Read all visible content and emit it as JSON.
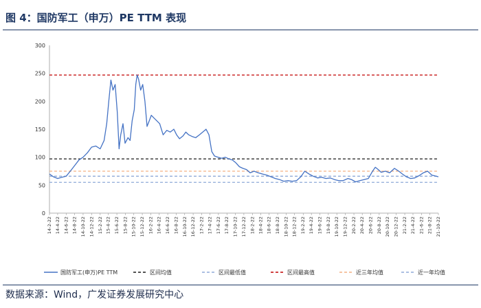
{
  "figure": {
    "title": "图 4：国防军工（申万）PE TTM 表现",
    "source": "数据来源：Wind，广发证券发展研究中心"
  },
  "chart_data": {
    "type": "line",
    "title": "",
    "xlabel": "",
    "ylabel": "",
    "ylim": [
      0,
      300
    ],
    "yticks": [
      0,
      50,
      100,
      150,
      200,
      250,
      300
    ],
    "grid": false,
    "legend_position": "bottom",
    "x_tick_labels": [
      "14-2-22",
      "14-4-22",
      "14-6-22",
      "14-8-22",
      "14-10-22",
      "14-12-22",
      "15-2-22",
      "15-4-22",
      "15-6-22",
      "15-8-22",
      "15-10-22",
      "15-12-22",
      "16-2-22",
      "16-4-22",
      "16-6-22",
      "16-8-22",
      "16-10-22",
      "16-12-22",
      "17-2-22",
      "17-4-22",
      "17-6-22",
      "17-8-22",
      "17-10-22",
      "17-12-22",
      "18-2-22",
      "18-4-22",
      "18-6-22",
      "18-8-22",
      "18-10-22",
      "18-12-22",
      "19-2-22",
      "19-4-22",
      "19-6-22",
      "19-8-22",
      "19-10-22",
      "19-12-22",
      "20-2-22",
      "20-4-22",
      "20-6-22",
      "20-8-22",
      "20-10-22",
      "20-12-22",
      "21-2-22",
      "21-4-22",
      "21-6-22",
      "21-8-22",
      "21-10-22"
    ],
    "series": [
      {
        "name": "国防军工(申万)PE TTM",
        "color": "#4472c4",
        "points": [
          [
            "2014-02-22",
            70
          ],
          [
            "2014-03-22",
            65
          ],
          [
            "2014-04-22",
            62
          ],
          [
            "2014-05-22",
            64
          ],
          [
            "2014-06-22",
            66
          ],
          [
            "2014-07-22",
            75
          ],
          [
            "2014-08-22",
            85
          ],
          [
            "2014-09-22",
            95
          ],
          [
            "2014-10-22",
            100
          ],
          [
            "2014-11-22",
            108
          ],
          [
            "2014-12-22",
            118
          ],
          [
            "2015-01-22",
            120
          ],
          [
            "2015-02-22",
            115
          ],
          [
            "2015-03-22",
            130
          ],
          [
            "2015-04-10",
            160
          ],
          [
            "2015-04-25",
            200
          ],
          [
            "2015-05-10",
            238
          ],
          [
            "2015-05-25",
            220
          ],
          [
            "2015-06-10",
            230
          ],
          [
            "2015-06-25",
            180
          ],
          [
            "2015-07-08",
            115
          ],
          [
            "2015-07-20",
            140
          ],
          [
            "2015-08-05",
            160
          ],
          [
            "2015-08-20",
            125
          ],
          [
            "2015-09-10",
            135
          ],
          [
            "2015-09-25",
            130
          ],
          [
            "2015-10-10",
            165
          ],
          [
            "2015-10-25",
            185
          ],
          [
            "2015-11-05",
            230
          ],
          [
            "2015-11-15",
            247
          ],
          [
            "2015-11-25",
            240
          ],
          [
            "2015-12-10",
            220
          ],
          [
            "2015-12-25",
            230
          ],
          [
            "2016-01-10",
            200
          ],
          [
            "2016-01-25",
            155
          ],
          [
            "2016-02-10",
            165
          ],
          [
            "2016-02-25",
            175
          ],
          [
            "2016-03-15",
            170
          ],
          [
            "2016-04-05",
            165
          ],
          [
            "2016-04-25",
            160
          ],
          [
            "2016-05-20",
            140
          ],
          [
            "2016-06-15",
            148
          ],
          [
            "2016-07-10",
            145
          ],
          [
            "2016-08-05",
            150
          ],
          [
            "2016-08-25",
            140
          ],
          [
            "2016-09-15",
            133
          ],
          [
            "2016-10-10",
            138
          ],
          [
            "2016-10-30",
            145
          ],
          [
            "2016-11-20",
            140
          ],
          [
            "2016-12-15",
            137
          ],
          [
            "2017-01-10",
            135
          ],
          [
            "2017-02-05",
            140
          ],
          [
            "2017-03-01",
            145
          ],
          [
            "2017-03-25",
            150
          ],
          [
            "2017-04-15",
            140
          ],
          [
            "2017-05-05",
            110
          ],
          [
            "2017-05-25",
            102
          ],
          [
            "2017-06-20",
            100
          ],
          [
            "2017-07-15",
            98
          ],
          [
            "2017-08-10",
            100
          ],
          [
            "2017-09-05",
            97
          ],
          [
            "2017-10-01",
            95
          ],
          [
            "2017-10-25",
            90
          ],
          [
            "2017-11-20",
            83
          ],
          [
            "2017-12-15",
            80
          ],
          [
            "2018-01-10",
            78
          ],
          [
            "2018-02-05",
            72
          ],
          [
            "2018-03-05",
            75
          ],
          [
            "2018-04-05",
            72
          ],
          [
            "2018-05-05",
            70
          ],
          [
            "2018-06-05",
            68
          ],
          [
            "2018-07-05",
            65
          ],
          [
            "2018-08-05",
            62
          ],
          [
            "2018-09-05",
            60
          ],
          [
            "2018-10-05",
            57
          ],
          [
            "2018-11-05",
            58
          ],
          [
            "2018-12-05",
            57
          ],
          [
            "2019-01-05",
            58
          ],
          [
            "2019-02-05",
            65
          ],
          [
            "2019-03-05",
            75
          ],
          [
            "2019-04-05",
            70
          ],
          [
            "2019-05-05",
            66
          ],
          [
            "2019-06-05",
            63
          ],
          [
            "2019-07-05",
            64
          ],
          [
            "2019-08-05",
            62
          ],
          [
            "2019-09-05",
            63
          ],
          [
            "2019-10-05",
            60
          ],
          [
            "2019-11-05",
            58
          ],
          [
            "2019-12-05",
            58
          ],
          [
            "2020-01-10",
            62
          ],
          [
            "2020-02-05",
            60
          ],
          [
            "2020-03-05",
            56
          ],
          [
            "2020-04-05",
            58
          ],
          [
            "2020-05-05",
            60
          ],
          [
            "2020-06-05",
            62
          ],
          [
            "2020-07-05",
            75
          ],
          [
            "2020-07-25",
            82
          ],
          [
            "2020-08-15",
            78
          ],
          [
            "2020-09-05",
            73
          ],
          [
            "2020-10-05",
            75
          ],
          [
            "2020-11-05",
            72
          ],
          [
            "2020-12-10",
            80
          ],
          [
            "2021-01-10",
            75
          ],
          [
            "2021-02-05",
            70
          ],
          [
            "2021-03-05",
            65
          ],
          [
            "2021-04-05",
            62
          ],
          [
            "2021-05-05",
            63
          ],
          [
            "2021-06-05",
            67
          ],
          [
            "2021-07-05",
            72
          ],
          [
            "2021-08-05",
            75
          ],
          [
            "2021-09-05",
            68
          ],
          [
            "2021-10-05",
            66
          ],
          [
            "2021-10-22",
            65
          ]
        ]
      }
    ],
    "reference_lines": [
      {
        "name": "区间均值",
        "value": 97,
        "color": "#1a1a1a"
      },
      {
        "name": "区间最低值",
        "value": 55,
        "color": "#8faad8"
      },
      {
        "name": "区间最高值",
        "value": 247,
        "color": "#c00000"
      },
      {
        "name": "近三年均值",
        "value": 75,
        "color": "#f4b183"
      },
      {
        "name": "近一年均值",
        "value": 66,
        "color": "#8faad8"
      }
    ]
  }
}
